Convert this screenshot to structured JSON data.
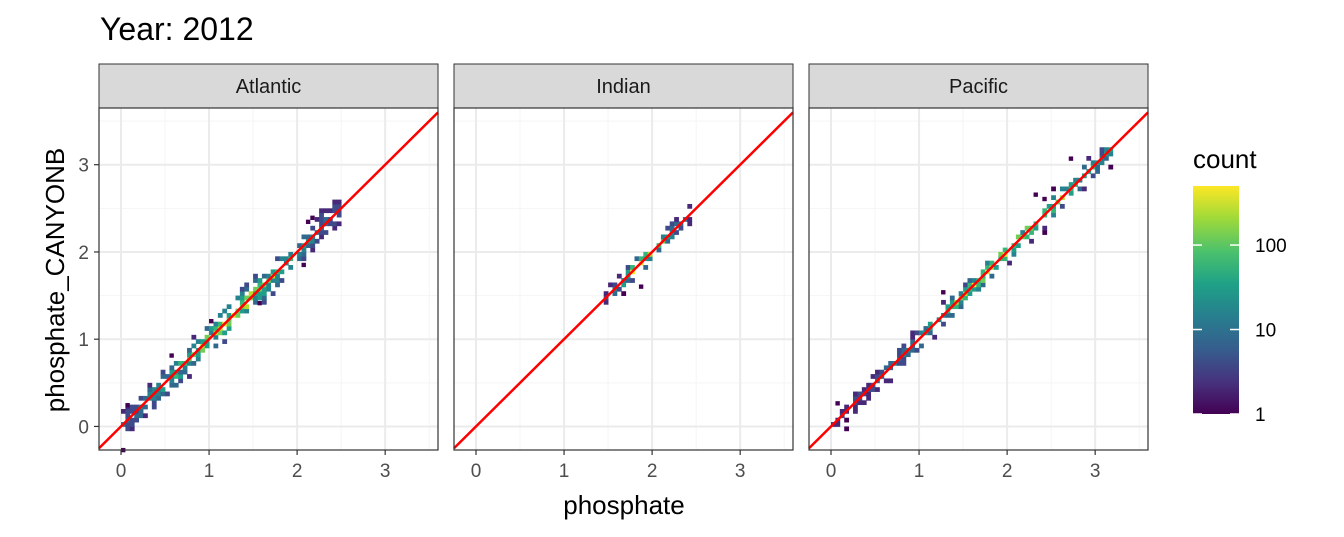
{
  "chart_data": {
    "type": "heatmap",
    "title": "Year: 2012",
    "xlabel": "phosphate",
    "ylabel": "phosphate_CANYONB",
    "xlim": [
      -0.25,
      3.6
    ],
    "ylim": [
      -0.27,
      3.65
    ],
    "x_ticks": [
      "0",
      "1",
      "2",
      "3"
    ],
    "y_ticks": [
      "0",
      "1",
      "2",
      "3"
    ],
    "grid": true,
    "reference_line": {
      "slope": 1,
      "intercept": 0,
      "color": "#ff0000"
    },
    "colorscale": "viridis",
    "legend": {
      "title": "count",
      "position": "right",
      "scale": "log10",
      "range": [
        1,
        500
      ],
      "ticks": [
        "1",
        "10",
        "100"
      ]
    },
    "facets": [
      {
        "name": "Atlantic",
        "x_min": 0.0,
        "x_max": 2.45,
        "peak_x": 1.2,
        "spread": 0.09
      },
      {
        "name": "Indian",
        "x_min": 1.45,
        "x_max": 2.4,
        "peak_x": 1.9,
        "spread": 0.05
      },
      {
        "name": "Pacific",
        "x_min": 0.0,
        "x_max": 3.15,
        "peak_x": 2.0,
        "spread": 0.06
      }
    ]
  },
  "colors": {
    "panel_border": "#333333",
    "strip_fill": "#d9d9d9",
    "grid_major": "#ebebeb",
    "grid_minor": "#f5f5f5",
    "line": "#ff0000"
  }
}
